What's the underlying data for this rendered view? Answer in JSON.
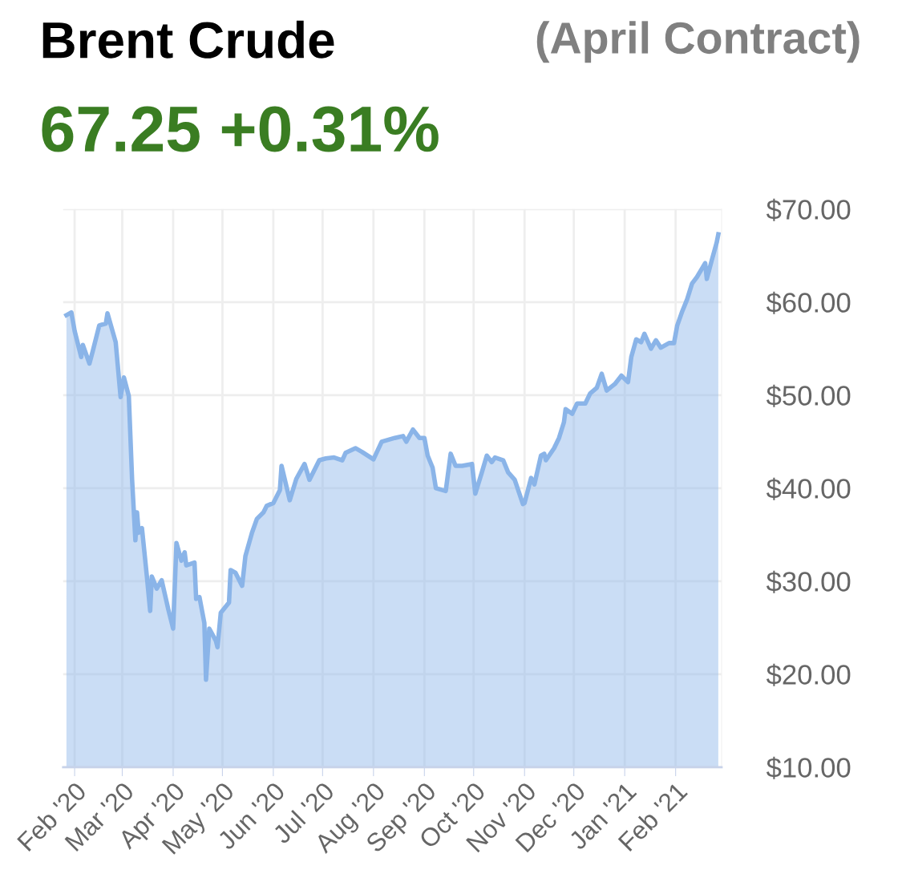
{
  "chart_data": {
    "type": "area",
    "title": "Brent Crude",
    "subtitle": "67.25 +0.31%",
    "annotations": [
      "(April Contract)"
    ],
    "x": [
      "2020-01-27",
      "2020-01-30",
      "2020-02-01",
      "2020-02-05",
      "2020-02-06",
      "2020-02-10",
      "2020-02-12",
      "2020-02-16",
      "2020-02-20",
      "2020-02-21",
      "2020-02-26",
      "2020-02-29",
      "2020-03-02",
      "2020-03-05",
      "2020-03-07",
      "2020-03-09",
      "2020-03-10",
      "2020-03-11",
      "2020-03-13",
      "2020-03-16",
      "2020-03-18",
      "2020-03-19",
      "2020-03-22",
      "2020-03-25",
      "2020-03-29",
      "2020-04-01",
      "2020-04-03",
      "2020-04-06",
      "2020-04-08",
      "2020-04-09",
      "2020-04-14",
      "2020-04-15",
      "2020-04-17",
      "2020-04-20",
      "2020-04-21",
      "2020-04-23",
      "2020-04-27",
      "2020-04-28",
      "2020-04-30",
      "2020-05-05",
      "2020-05-06",
      "2020-05-09",
      "2020-05-13",
      "2020-05-15",
      "2020-05-19",
      "2020-05-22",
      "2020-05-26",
      "2020-05-28",
      "2020-06-01",
      "2020-06-05",
      "2020-06-06",
      "2020-06-11",
      "2020-06-15",
      "2020-06-20",
      "2020-06-23",
      "2020-06-29",
      "2020-07-03",
      "2020-07-08",
      "2020-07-13",
      "2020-07-15",
      "2020-07-21",
      "2020-07-25",
      "2020-08-01",
      "2020-08-06",
      "2020-08-14",
      "2020-08-19",
      "2020-08-21",
      "2020-08-25",
      "2020-08-29",
      "2020-09-01",
      "2020-09-03",
      "2020-09-06",
      "2020-09-08",
      "2020-09-14",
      "2020-09-17",
      "2020-09-20",
      "2020-09-24",
      "2020-09-30",
      "2020-10-02",
      "2020-10-06",
      "2020-10-09",
      "2020-10-12",
      "2020-10-14",
      "2020-10-19",
      "2020-10-22",
      "2020-10-26",
      "2020-10-31",
      "2020-11-01",
      "2020-11-05",
      "2020-11-07",
      "2020-11-11",
      "2020-11-13",
      "2020-11-14",
      "2020-11-19",
      "2020-11-22",
      "2020-11-25",
      "2020-11-26",
      "2020-11-30",
      "2020-12-03",
      "2020-12-08",
      "2020-12-11",
      "2020-12-15",
      "2020-12-18",
      "2020-12-21",
      "2020-12-26",
      "2020-12-30",
      "2021-01-03",
      "2021-01-05",
      "2021-01-08",
      "2021-01-11",
      "2021-01-13",
      "2021-01-17",
      "2021-01-20",
      "2021-01-23",
      "2021-01-28",
      "2021-01-31",
      "2021-02-02",
      "2021-02-05",
      "2021-02-08",
      "2021-02-11",
      "2021-02-14",
      "2021-02-17",
      "2021-02-19",
      "2021-02-20",
      "2021-02-23",
      "2021-02-26",
      "2021-02-27"
    ],
    "series": [
      {
        "color": "#8ab4e8",
        "values": [
          58.6,
          58.9,
          56.9,
          54.1,
          55.4,
          53.4,
          54.7,
          57.5,
          57.7,
          58.8,
          55.7,
          49.8,
          51.9,
          49.9,
          40.9,
          34.4,
          37.4,
          35.2,
          35.7,
          30.5,
          26.8,
          30.5,
          29.2,
          30.1,
          27.0,
          24.9,
          34.1,
          32.2,
          33.1,
          31.7,
          32.0,
          28.1,
          28.3,
          25.5,
          19.4,
          24.9,
          23.6,
          22.9,
          26.6,
          27.7,
          31.2,
          30.9,
          29.5,
          32.7,
          35.2,
          36.7,
          37.4,
          38.1,
          38.4,
          39.8,
          42.4,
          38.7,
          41.0,
          42.6,
          40.9,
          43.0,
          43.2,
          43.3,
          43.0,
          43.8,
          44.3,
          43.9,
          43.1,
          45.0,
          45.4,
          45.6,
          45.0,
          46.3,
          45.4,
          45.4,
          43.5,
          42.2,
          40.0,
          39.7,
          43.7,
          42.4,
          42.4,
          42.6,
          39.4,
          41.7,
          43.5,
          42.8,
          43.3,
          43.0,
          41.7,
          40.9,
          38.3,
          38.4,
          41.1,
          40.4,
          43.5,
          43.7,
          43.0,
          44.3,
          45.4,
          47.1,
          48.5,
          48.0,
          49.1,
          49.1,
          50.2,
          50.8,
          52.3,
          50.5,
          51.2,
          52.1,
          51.4,
          54.1,
          56.0,
          55.7,
          56.6,
          55.0,
          55.9,
          55.1,
          55.6,
          55.6,
          57.5,
          59.0,
          60.3,
          62.0,
          62.7,
          63.6,
          64.2,
          62.5,
          64.5,
          66.4,
          67.3
        ]
      }
    ],
    "xlim": [
      "2020-01-25",
      "2021-03-01"
    ],
    "xticks": [
      {
        "value": "2020-02-01",
        "label": "Feb '20"
      },
      {
        "value": "2020-03-01",
        "label": "Mar '20"
      },
      {
        "value": "2020-04-01",
        "label": "Apr '20"
      },
      {
        "value": "2020-05-01",
        "label": "May '20"
      },
      {
        "value": "2020-06-01",
        "label": "Jun '20"
      },
      {
        "value": "2020-07-01",
        "label": "Jul '20"
      },
      {
        "value": "2020-08-01",
        "label": "Aug '20"
      },
      {
        "value": "2020-09-01",
        "label": "Sep '20"
      },
      {
        "value": "2020-10-01",
        "label": "Oct '20"
      },
      {
        "value": "2020-11-01",
        "label": "Nov '20"
      },
      {
        "value": "2020-12-01",
        "label": "Dec '20"
      },
      {
        "value": "2021-01-01",
        "label": "Jan '21"
      },
      {
        "value": "2021-02-01",
        "label": "Feb '21"
      }
    ],
    "ylim": [
      10,
      70
    ],
    "yticks": [
      {
        "value": 10,
        "label": "$10.00"
      },
      {
        "value": 20,
        "label": "$20.00"
      },
      {
        "value": 30,
        "label": "$30.00"
      },
      {
        "value": 40,
        "label": "$40.00"
      },
      {
        "value": 50,
        "label": "$50.00"
      },
      {
        "value": 60,
        "label": "$60.00"
      },
      {
        "value": 70,
        "label": "$70.00"
      }
    ],
    "grid": true,
    "legend": false
  }
}
